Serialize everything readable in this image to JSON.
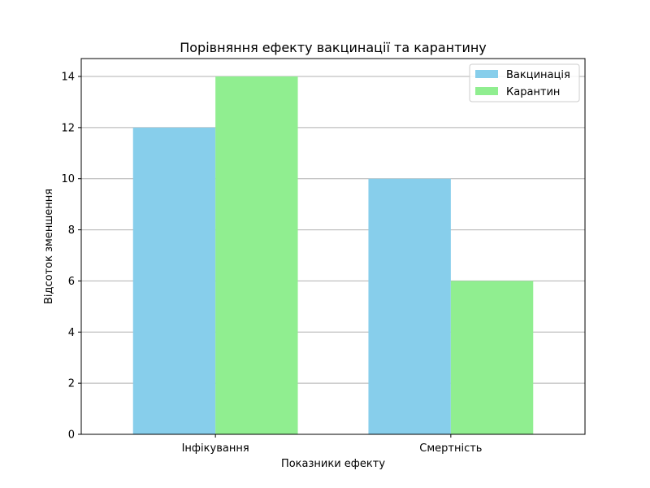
{
  "chart_data": {
    "type": "bar",
    "title": "Порівняння ефекту вакцинації та карантину",
    "xlabel": "Показники ефекту",
    "ylabel": "Відсоток зменшення",
    "categories": [
      "Інфікування",
      "Смертність"
    ],
    "series": [
      {
        "name": "Вакцинація",
        "values": [
          12,
          10
        ],
        "color": "#87ceeb"
      },
      {
        "name": "Карантин",
        "values": [
          14,
          6
        ],
        "color": "#90ee90"
      }
    ],
    "ylim": [
      0,
      14.7
    ],
    "yticks": [
      0,
      2,
      4,
      6,
      8,
      10,
      12,
      14
    ],
    "grid": "y",
    "legend_position": "top-right"
  }
}
